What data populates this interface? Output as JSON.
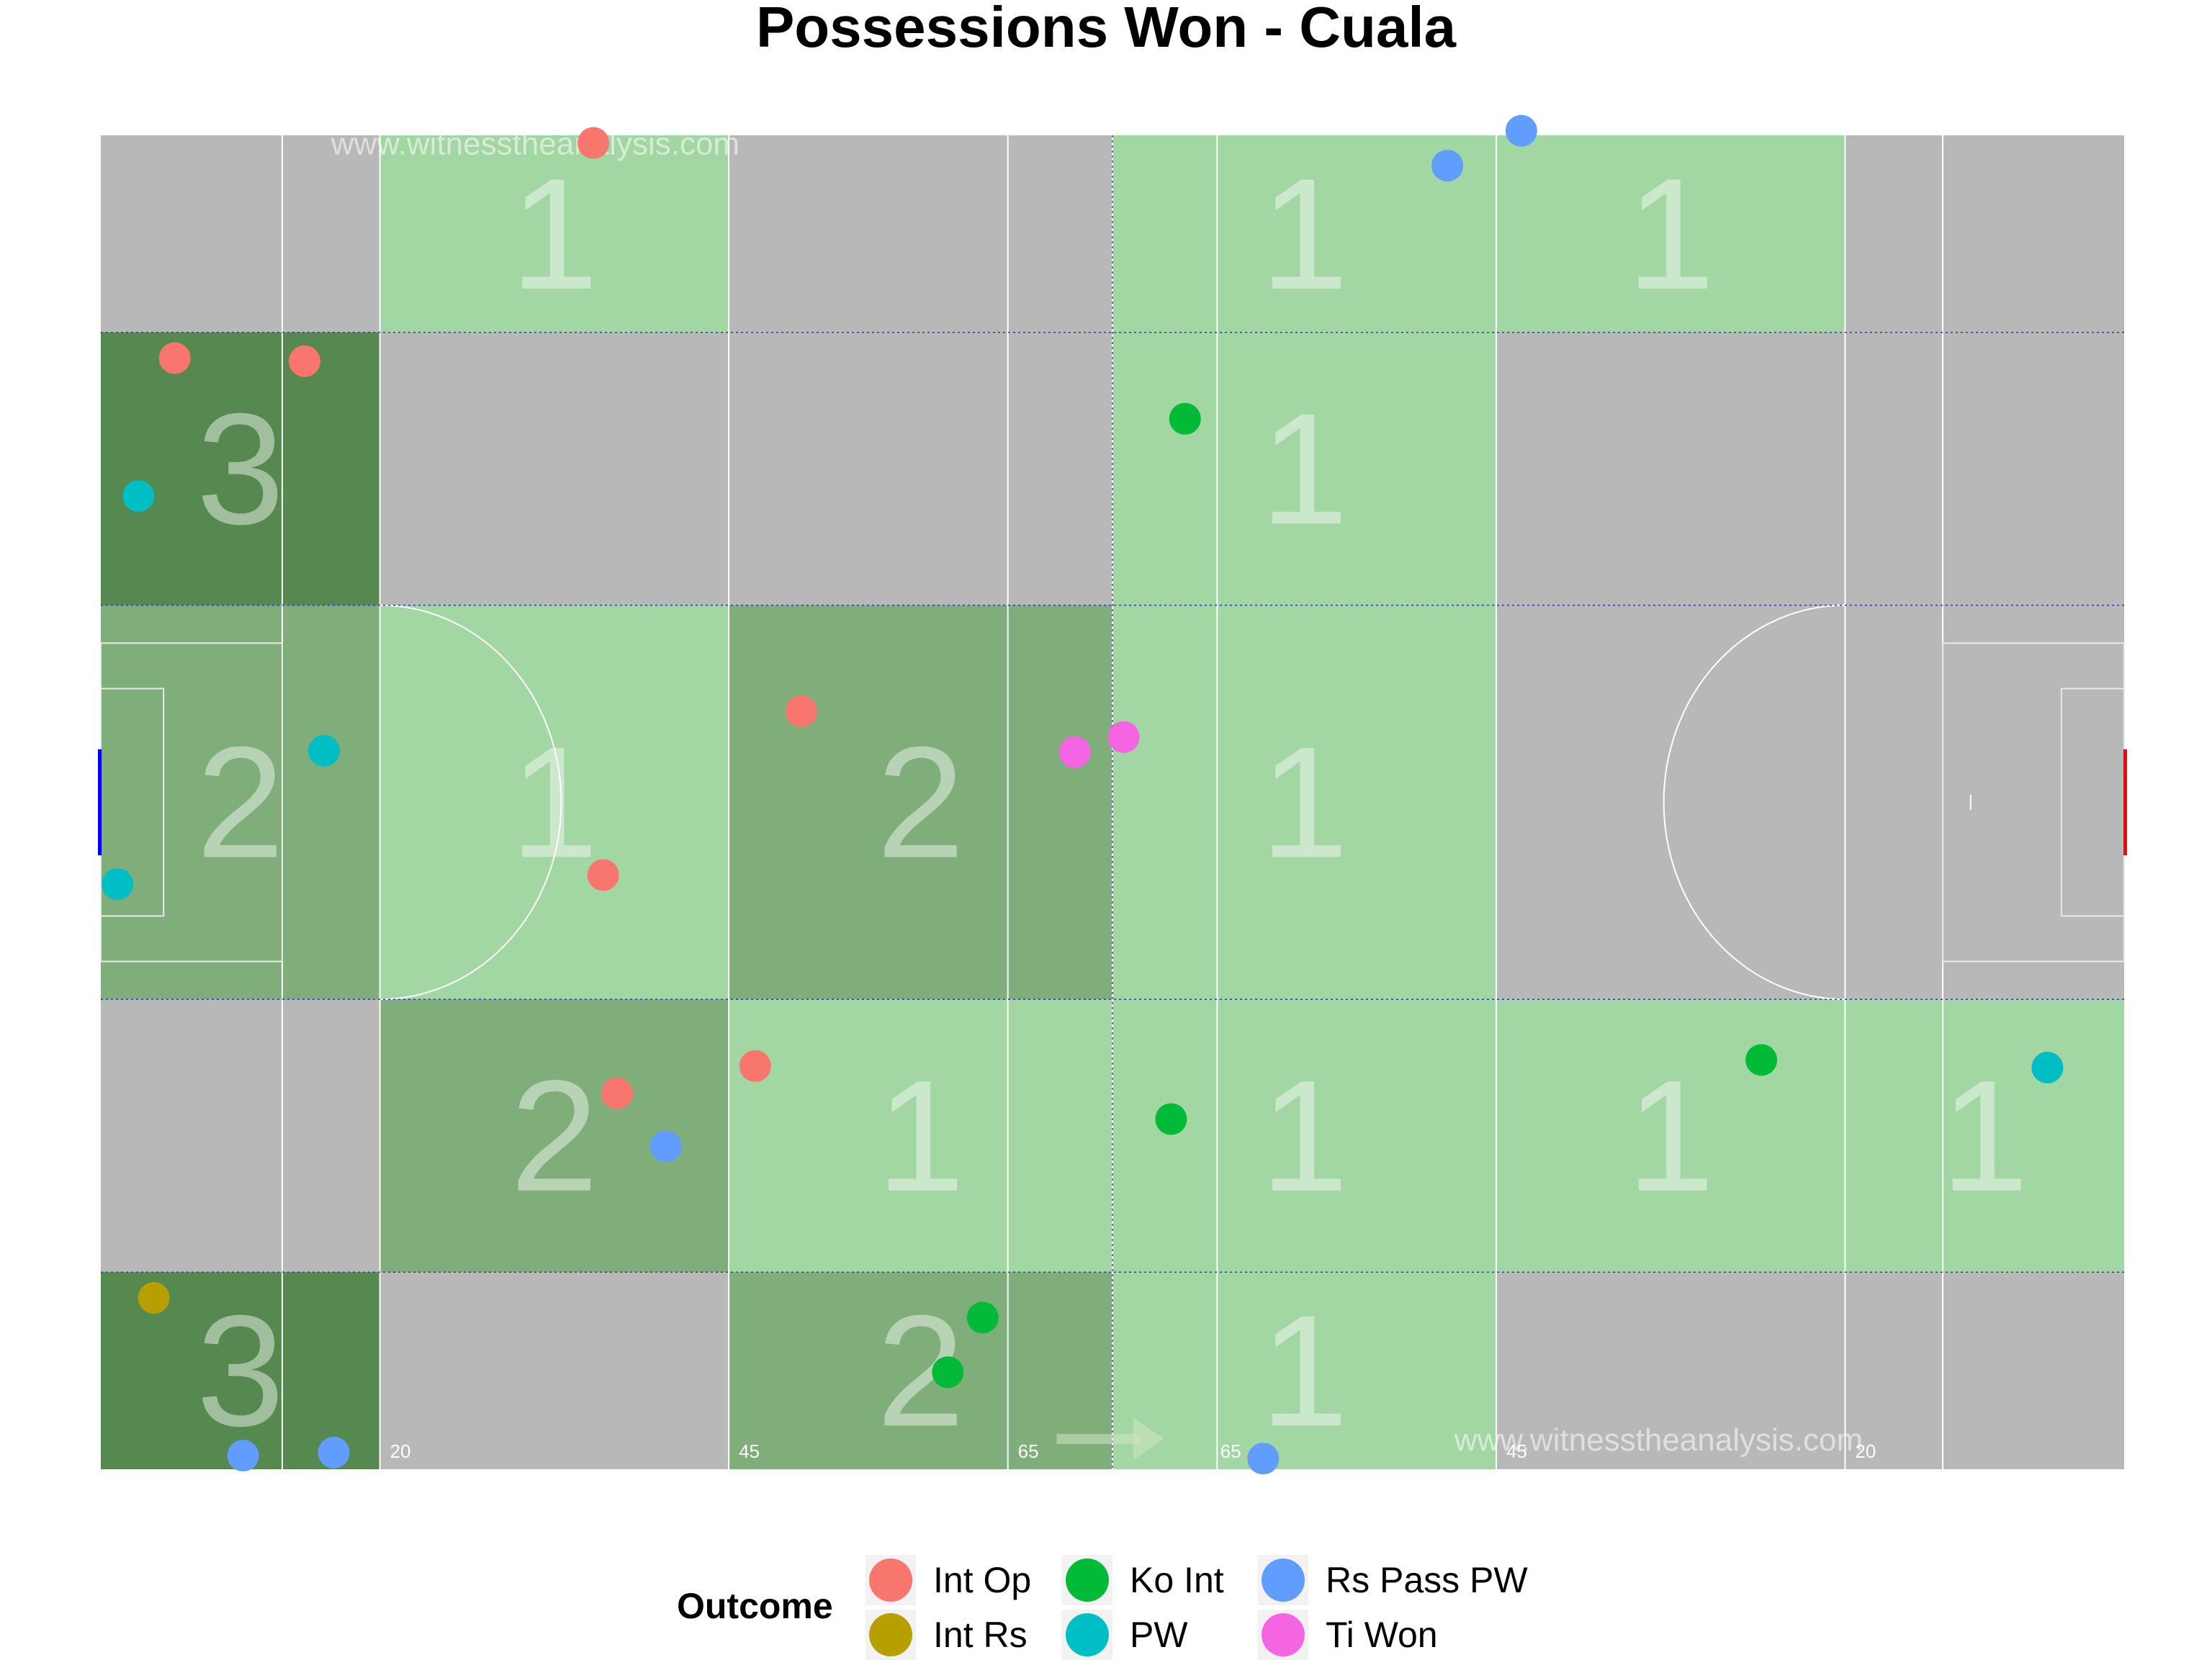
{
  "chart_data": {
    "type": "scatter",
    "title": "Possessions Won - Cuala",
    "xlim": [
      0,
      145
    ],
    "ylim": [
      0,
      88
    ],
    "grid": false,
    "legend_position": "bottom",
    "watermark": "www.witnesstheanalysis.com",
    "distance_labels": [
      "20",
      "45",
      "65",
      "65",
      "45",
      "20"
    ],
    "zone_x_edges": [
      0,
      20,
      45,
      72.5,
      100,
      125,
      145
    ],
    "zone_y_edges": [
      0,
      13,
      31,
      57,
      75,
      88
    ],
    "zones": [
      {
        "x0": 0,
        "x1": 20,
        "y0": 75,
        "y1": 88,
        "count": 0
      },
      {
        "x0": 20,
        "x1": 45,
        "y0": 75,
        "y1": 88,
        "count": 1
      },
      {
        "x0": 45,
        "x1": 72.5,
        "y0": 75,
        "y1": 88,
        "count": 0
      },
      {
        "x0": 72.5,
        "x1": 100,
        "y0": 75,
        "y1": 88,
        "count": 1
      },
      {
        "x0": 100,
        "x1": 125,
        "y0": 75,
        "y1": 88,
        "count": 1
      },
      {
        "x0": 125,
        "x1": 145,
        "y0": 75,
        "y1": 88,
        "count": 0
      },
      {
        "x0": 0,
        "x1": 20,
        "y0": 57,
        "y1": 75,
        "count": 3
      },
      {
        "x0": 20,
        "x1": 45,
        "y0": 57,
        "y1": 75,
        "count": 0
      },
      {
        "x0": 45,
        "x1": 72.5,
        "y0": 57,
        "y1": 75,
        "count": 0
      },
      {
        "x0": 72.5,
        "x1": 100,
        "y0": 57,
        "y1": 75,
        "count": 1
      },
      {
        "x0": 100,
        "x1": 125,
        "y0": 57,
        "y1": 75,
        "count": 0
      },
      {
        "x0": 125,
        "x1": 145,
        "y0": 57,
        "y1": 75,
        "count": 0
      },
      {
        "x0": 0,
        "x1": 20,
        "y0": 31,
        "y1": 57,
        "count": 2
      },
      {
        "x0": 20,
        "x1": 45,
        "y0": 31,
        "y1": 57,
        "count": 1
      },
      {
        "x0": 45,
        "x1": 72.5,
        "y0": 31,
        "y1": 57,
        "count": 2
      },
      {
        "x0": 72.5,
        "x1": 100,
        "y0": 31,
        "y1": 57,
        "count": 1
      },
      {
        "x0": 100,
        "x1": 125,
        "y0": 31,
        "y1": 57,
        "count": 0
      },
      {
        "x0": 125,
        "x1": 145,
        "y0": 31,
        "y1": 57,
        "count": 0
      },
      {
        "x0": 0,
        "x1": 20,
        "y0": 13,
        "y1": 31,
        "count": 0
      },
      {
        "x0": 20,
        "x1": 45,
        "y0": 13,
        "y1": 31,
        "count": 2
      },
      {
        "x0": 45,
        "x1": 72.5,
        "y0": 13,
        "y1": 31,
        "count": 1
      },
      {
        "x0": 72.5,
        "x1": 100,
        "y0": 13,
        "y1": 31,
        "count": 1
      },
      {
        "x0": 100,
        "x1": 125,
        "y0": 13,
        "y1": 31,
        "count": 1
      },
      {
        "x0": 125,
        "x1": 145,
        "y0": 13,
        "y1": 31,
        "count": 1
      },
      {
        "x0": 0,
        "x1": 20,
        "y0": 0,
        "y1": 13,
        "count": 3
      },
      {
        "x0": 20,
        "x1": 45,
        "y0": 0,
        "y1": 13,
        "count": 0
      },
      {
        "x0": 45,
        "x1": 72.5,
        "y0": 0,
        "y1": 13,
        "count": 2
      },
      {
        "x0": 72.5,
        "x1": 100,
        "y0": 0,
        "y1": 13,
        "count": 1
      },
      {
        "x0": 100,
        "x1": 125,
        "y0": 0,
        "y1": 13,
        "count": 0
      },
      {
        "x0": 125,
        "x1": 145,
        "y0": 0,
        "y1": 13,
        "count": 0
      }
    ],
    "legend_title": "Outcome",
    "series": [
      {
        "name": "Int Op",
        "color": "#F8766D",
        "points": [
          [
            35.3,
            87.5
          ],
          [
            5.3,
            73.3
          ],
          [
            14.6,
            73.1
          ],
          [
            50.2,
            50.0
          ],
          [
            36.0,
            39.2
          ],
          [
            46.9,
            26.6
          ],
          [
            37.0,
            24.8
          ]
        ]
      },
      {
        "name": "Int Rs",
        "color": "#B79F00",
        "points": [
          [
            3.8,
            11.3
          ]
        ]
      },
      {
        "name": "Ko Int",
        "color": "#00BA38",
        "points": [
          [
            77.7,
            69.3
          ],
          [
            76.7,
            23.1
          ],
          [
            119.0,
            27.0
          ],
          [
            63.2,
            10.0
          ],
          [
            60.7,
            6.4
          ]
        ]
      },
      {
        "name": "PW",
        "color": "#00BFC4",
        "points": [
          [
            2.7,
            64.2
          ],
          [
            16.0,
            47.4
          ],
          [
            1.2,
            38.6
          ],
          [
            139.5,
            26.5
          ]
        ]
      },
      {
        "name": "Rs Pass PW",
        "color": "#619CFF",
        "points": [
          [
            96.5,
            86.0
          ],
          [
            101.8,
            88.3
          ],
          [
            40.5,
            21.3
          ],
          [
            10.2,
            0.9
          ],
          [
            16.7,
            1.1
          ],
          [
            83.3,
            0.7
          ]
        ]
      },
      {
        "name": "Ti Won",
        "color": "#F564E3",
        "points": [
          [
            69.8,
            47.3
          ],
          [
            73.3,
            48.3
          ]
        ]
      }
    ]
  }
}
